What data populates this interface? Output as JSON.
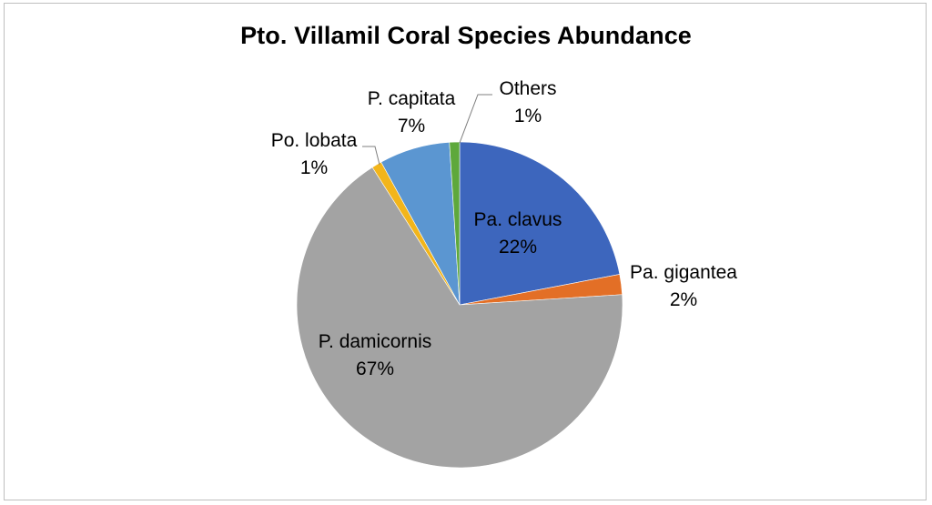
{
  "chart_data": {
    "type": "pie",
    "title": "Pto. Villamil Coral Species Abundance",
    "slices": [
      {
        "name": "Pa. clavus",
        "value": 22,
        "label": "22%",
        "color": "#3d66bd"
      },
      {
        "name": "Pa. gigantea",
        "value": 2,
        "label": "2%",
        "color": "#e36f26"
      },
      {
        "name": "P. damicornis",
        "value": 67,
        "label": "67%",
        "color": "#a3a3a3"
      },
      {
        "name": "Po. lobata",
        "value": 1,
        "label": "1%",
        "color": "#f2b51b"
      },
      {
        "name": "P. capitata",
        "value": 7,
        "label": "7%",
        "color": "#5b96d1"
      },
      {
        "name": "Others",
        "value": 1,
        "label": "1%",
        "color": "#5ea83c"
      }
    ],
    "start_angle_deg": 0,
    "direction": "clockwise",
    "legend": "none",
    "data_labels": "category name and percentage"
  }
}
